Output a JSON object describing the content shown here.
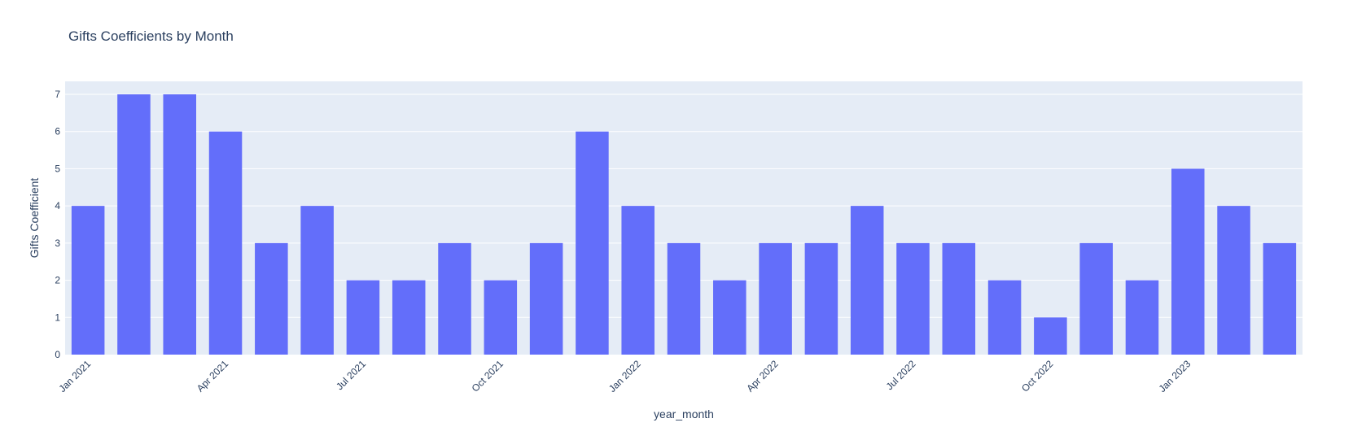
{
  "chart_data": {
    "type": "bar",
    "title": "Gifts Coefficients by Month",
    "xlabel": "year_month",
    "ylabel": "Gifts Coefficient",
    "x": [
      "2021-01",
      "2021-02",
      "2021-03",
      "2021-04",
      "2021-05",
      "2021-06",
      "2021-07",
      "2021-08",
      "2021-09",
      "2021-10",
      "2021-11",
      "2021-12",
      "2022-01",
      "2022-02",
      "2022-03",
      "2022-04",
      "2022-05",
      "2022-06",
      "2022-07",
      "2022-08",
      "2022-09",
      "2022-10",
      "2022-11",
      "2022-12",
      "2023-01",
      "2023-02",
      "2023-03"
    ],
    "values": [
      4,
      7,
      7,
      6,
      3,
      4,
      2,
      2,
      3,
      2,
      3,
      6,
      4,
      3,
      2,
      3,
      3,
      4,
      3,
      3,
      2,
      1,
      3,
      2,
      5,
      4,
      3
    ],
    "ylim": [
      0,
      7.35
    ],
    "yticks": [
      "0",
      "1",
      "2",
      "3",
      "4",
      "5",
      "6",
      "7"
    ],
    "xticks": [
      {
        "x": "2021-01",
        "label": "Jan 2021"
      },
      {
        "x": "2021-04",
        "label": "Apr 2021"
      },
      {
        "x": "2021-07",
        "label": "Jul 2021"
      },
      {
        "x": "2021-10",
        "label": "Oct 2021"
      },
      {
        "x": "2022-01",
        "label": "Jan 2022"
      },
      {
        "x": "2022-04",
        "label": "Apr 2022"
      },
      {
        "x": "2022-07",
        "label": "Jul 2022"
      },
      {
        "x": "2022-10",
        "label": "Oct 2022"
      },
      {
        "x": "2023-01",
        "label": "Jan 2023"
      }
    ],
    "grid": true,
    "colors": {
      "bar": "#636efa",
      "plot_bg": "#e5ecf6",
      "grid": "#ffffff",
      "text": "#2a3f5f"
    }
  }
}
